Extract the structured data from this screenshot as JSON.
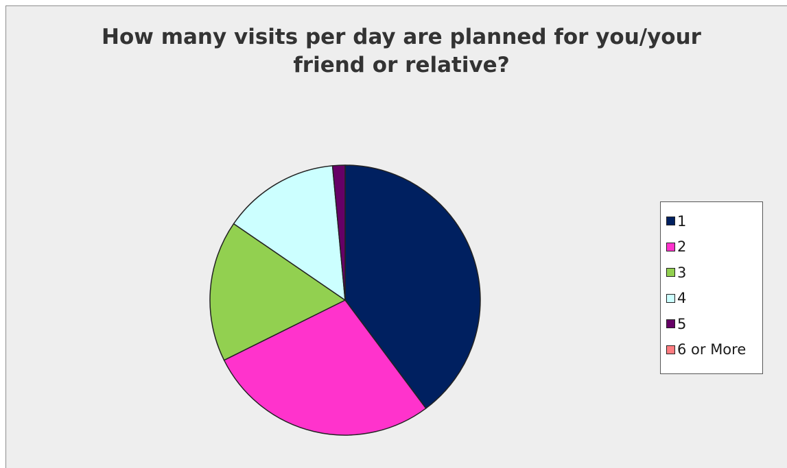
{
  "chart_data": {
    "type": "pie",
    "title_lines": [
      "How many visits per day are planned for you/your",
      "friend or relative?"
    ],
    "legend_position": "right",
    "slices": [
      {
        "label": "1",
        "value": 40,
        "color": "#002060"
      },
      {
        "label": "2",
        "value": 28,
        "color": "#ff33cc"
      },
      {
        "label": "3",
        "value": 17,
        "color": "#92d050"
      },
      {
        "label": "4",
        "value": 14,
        "color": "#ccffff"
      },
      {
        "label": "5",
        "value": 1.5,
        "color": "#660066"
      },
      {
        "label": "6 or More",
        "value": 0,
        "color": "#ff7c80"
      }
    ]
  }
}
